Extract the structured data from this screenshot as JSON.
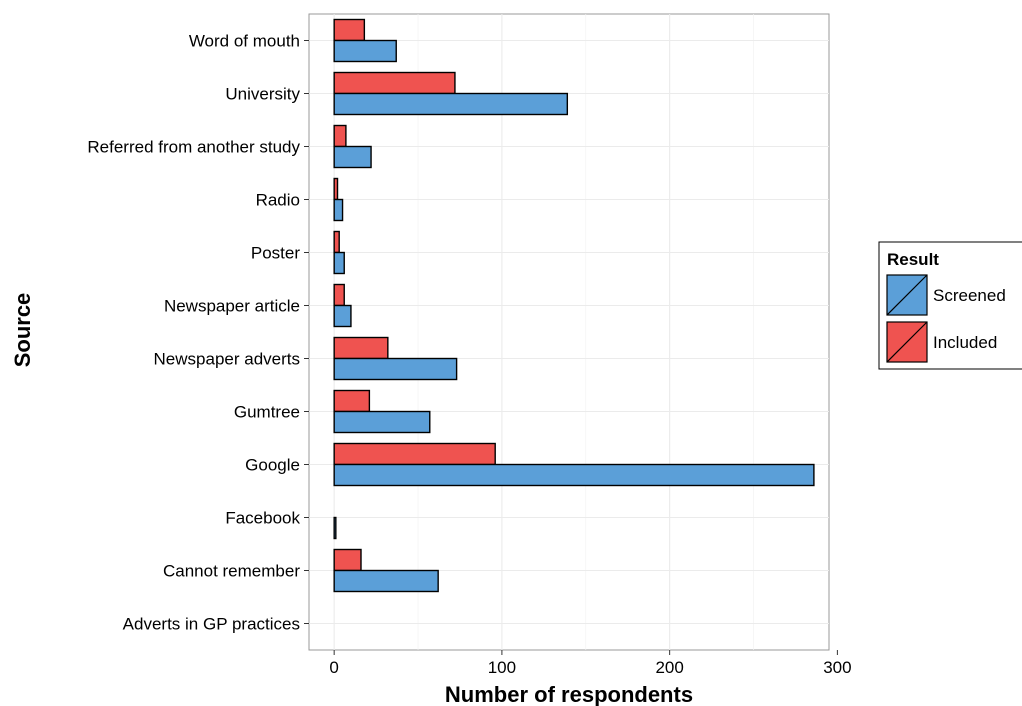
{
  "chart_data": {
    "type": "bar",
    "orientation": "horizontal",
    "title": "",
    "xlabel": "Number of respondents",
    "ylabel": "Source",
    "xlim": [
      -15,
      295
    ],
    "xticks": [
      0,
      100,
      200,
      300
    ],
    "grid": true,
    "legend_position": "right",
    "legend_title": "Result",
    "categories": [
      "Word of mouth",
      "University",
      "Referred from another study",
      "Radio",
      "Poster",
      "Newspaper article",
      "Newspaper adverts",
      "Gumtree",
      "Google",
      "Facebook",
      "Cannot remember",
      "Adverts in GP practices"
    ],
    "series": [
      {
        "name": "Screened",
        "color": "#5b9fd8",
        "values": [
          37,
          139,
          22,
          5,
          6,
          10,
          73,
          57,
          286,
          1,
          62,
          0
        ]
      },
      {
        "name": "Included",
        "color": "#ef5350",
        "values": [
          18,
          72,
          7,
          2,
          3,
          6,
          32,
          21,
          96,
          0,
          16,
          0
        ]
      }
    ]
  }
}
